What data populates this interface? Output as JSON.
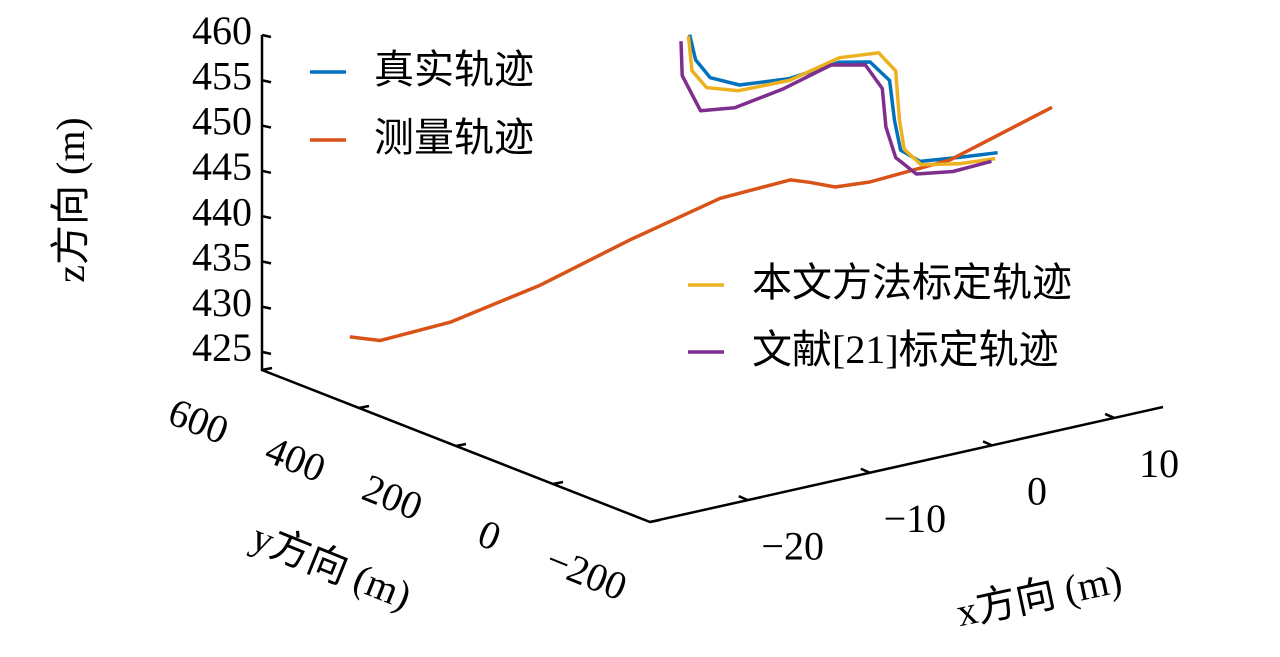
{
  "chart_data": {
    "type": "line3d",
    "xlabel": "x方向 (m)",
    "ylabel": "y方向 (m)",
    "zlabel": "z方向 (m)",
    "xlim": [
      -28,
      14
    ],
    "ylim": [
      -200,
      600
    ],
    "zlim": [
      423,
      460
    ],
    "xticks": [
      {
        "value": -20,
        "label": "−20"
      },
      {
        "value": -10,
        "label": "−10"
      },
      0,
      10
    ],
    "yticks": [
      {
        "value": -200,
        "label": "−200"
      },
      0,
      200,
      400,
      600
    ],
    "zticks": [
      425,
      430,
      435,
      440,
      445,
      450,
      455,
      460
    ],
    "series": [
      {
        "name": "真实轨迹",
        "color": "#0072BD",
        "x": [
          -5.7,
          -5.6,
          -4.8,
          -2.8,
          0.9,
          4.6,
          6.7,
          7.9,
          7.9,
          8.0,
          9.2,
          12.1,
          13.8
        ],
        "y": [
          280,
          270,
          260,
          250,
          240,
          230,
          220,
          210,
          200,
          190,
          180,
          170,
          136
        ],
        "z": [
          460.0,
          457.4,
          455.4,
          454.2,
          454.0,
          454.9,
          454.5,
          452.3,
          448.1,
          445.0,
          443.6,
          443.4,
          444.1
        ]
      },
      {
        "name": "测量轨迹",
        "color": "#D95319",
        "x": [
          -22.4,
          -22.5,
          -19.3,
          -14.5,
          -9.7,
          -4.9,
          -1.7,
          -2.7,
          -3.2,
          -2.9,
          1.1,
          6.9
        ],
        "y": [
          560,
          495,
          431,
          366,
          302,
          237,
          173,
          108,
          43,
          -21,
          -86,
          -150
        ],
        "z": [
          425.8,
          426.8,
          429.2,
          433.2,
          438.1,
          442.6,
          445.0,
          446.4,
          447.4,
          449.2,
          451.8,
          457.2
        ]
      },
      {
        "name": "本文方法标定轨迹",
        "color": "#EDB120",
        "x": [
          -5.8,
          -5.9,
          -5.1,
          -2.9,
          0.9,
          4.6,
          7.4,
          8.4,
          8.3,
          8.3,
          9.3,
          12.0,
          13.6
        ],
        "y": [
          280,
          270,
          260,
          250,
          240,
          230,
          220,
          210,
          200,
          190,
          180,
          170,
          136
        ],
        "z": [
          459.9,
          456.3,
          454.4,
          453.6,
          453.8,
          455.4,
          455.3,
          453.2,
          448.1,
          445.0,
          443.2,
          442.7,
          443.5
        ]
      },
      {
        "name": "文献[21]标定轨迹",
        "color": "#7E2F8E",
        "x": [
          -6.4,
          -6.7,
          -5.6,
          -3.2,
          0.3,
          3.9,
          6.3,
          7.3,
          7.2,
          7.6,
          8.9,
          11.5,
          13.3
        ],
        "y": [
          280,
          270,
          260,
          250,
          240,
          230,
          220,
          210,
          200,
          190,
          180,
          170,
          136
        ],
        "z": [
          459.5,
          456.0,
          452.0,
          451.8,
          453.0,
          454.8,
          454.3,
          451.6,
          447.6,
          444.3,
          442.3,
          442.0,
          443.3
        ]
      }
    ]
  }
}
